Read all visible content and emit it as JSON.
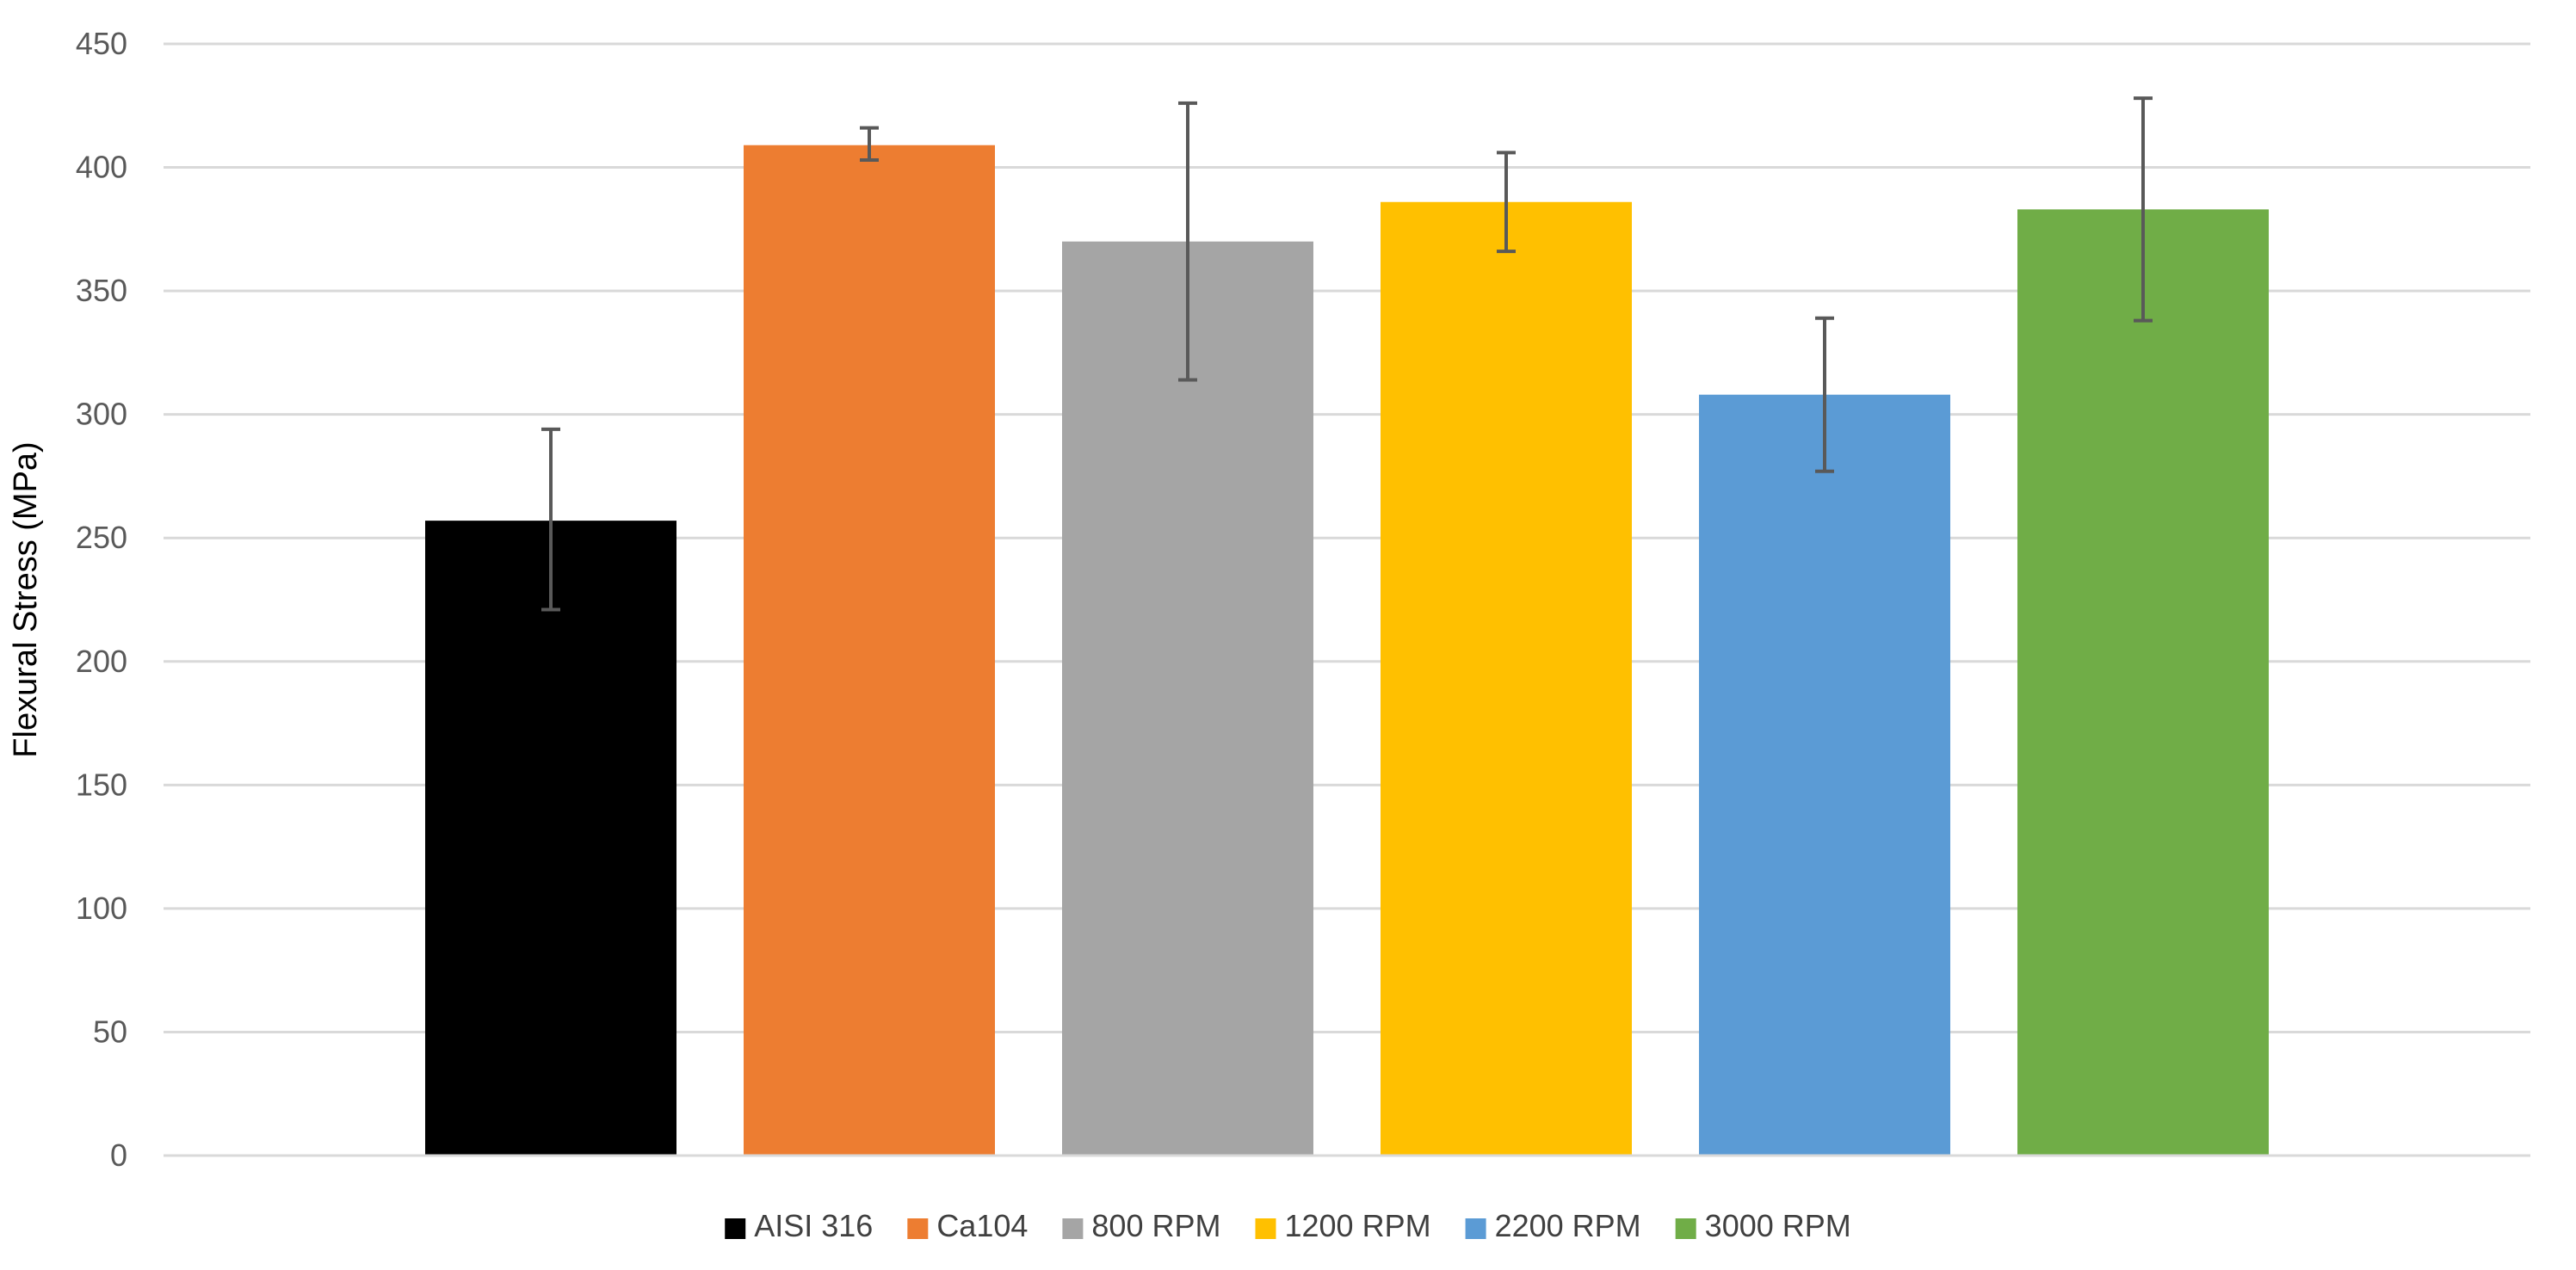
{
  "chart_data": {
    "type": "bar",
    "title": "",
    "xlabel": "",
    "ylabel": "Flexural Stress (MPa)",
    "ylim": [
      0,
      450
    ],
    "yticks": [
      0,
      50,
      100,
      150,
      200,
      250,
      300,
      350,
      400,
      450
    ],
    "grid": true,
    "legend_position": "bottom",
    "categories": [
      "AISI 316",
      "Ca104",
      "800 RPM",
      "1200 RPM",
      "2200 RPM",
      "3000 RPM"
    ],
    "series": [
      {
        "name": "AISI 316",
        "value": 257,
        "error_low": 221,
        "error_high": 294,
        "color": "#000000"
      },
      {
        "name": "Ca104",
        "value": 409,
        "error_low": 403,
        "error_high": 416,
        "color": "#ED7D31"
      },
      {
        "name": "800 RPM",
        "value": 370,
        "error_low": 314,
        "error_high": 426,
        "color": "#A5A5A5"
      },
      {
        "name": "1200 RPM",
        "value": 386,
        "error_low": 366,
        "error_high": 406,
        "color": "#FFC000"
      },
      {
        "name": "2200 RPM",
        "value": 308,
        "error_low": 277,
        "error_high": 339,
        "color": "#5B9BD5"
      },
      {
        "name": "3000 RPM",
        "value": 383,
        "error_low": 338,
        "error_high": 428,
        "color": "#70AD47"
      }
    ]
  }
}
